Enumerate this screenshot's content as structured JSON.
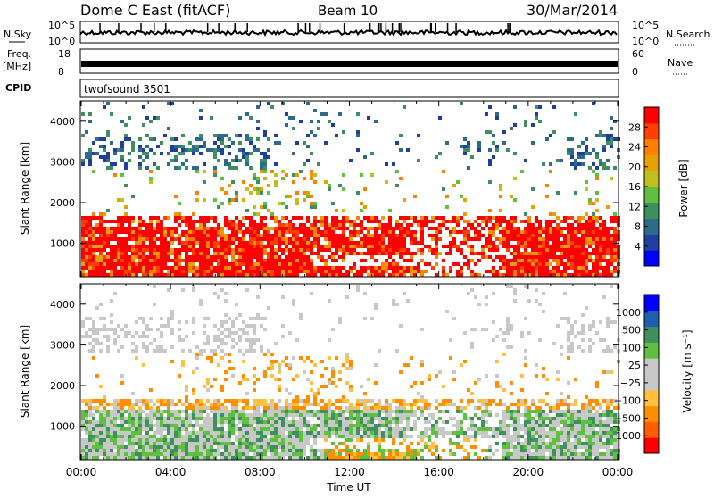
{
  "header": {
    "title_left": "Dome C East (fitACF)",
    "title_center": "Beam 10",
    "title_right": "30/Mar/2014"
  },
  "summary": {
    "nsky_label": "N.Sky",
    "nsky_ticks": [
      "10^5",
      "10^0"
    ],
    "nsearch_label": "N.Search",
    "nsearch_ticks": [
      "10^5",
      "10^0"
    ],
    "freq_label": "Freq.",
    "freq_unit": "[MHz]",
    "freq_ticks": [
      "18",
      "8"
    ],
    "nave_label": "Nave",
    "nave_ticks": [
      "60",
      "0"
    ],
    "cpid_label": "CPID",
    "cpid_value": "twofsound 3501"
  },
  "colors": {
    "power_scale": [
      "#0000ff",
      "#1f3f9f",
      "#2e6b8a",
      "#3d8f5f",
      "#5fbf3f",
      "#bfbf1f",
      "#e6a000",
      "#ff7f00",
      "#ff3f00",
      "#ff0000"
    ],
    "velocity_scale": [
      "#0000ff",
      "#1f5faf",
      "#3f8f5f",
      "#5fbf3f",
      "#c8c8c8",
      "#c8c8c8",
      "#ffbf3f",
      "#ff8f00",
      "#ff5f00",
      "#ff0000"
    ]
  },
  "chart_data": [
    {
      "type": "heatmap",
      "name": "power",
      "ylabel": "Slant Range [km]",
      "yticks": [
        "1000",
        "2000",
        "3000",
        "4000"
      ],
      "yrange": [
        180,
        4500
      ],
      "xticks": [
        "00:00",
        "04:00",
        "08:00",
        "12:00",
        "16:00",
        "20:00",
        "00:00"
      ],
      "colorbar_label": "Power [dB]",
      "colorbar_ticks": [
        "4",
        "8",
        "12",
        "16",
        "20",
        "24",
        "28"
      ],
      "colorbar_range": [
        0,
        30
      ]
    },
    {
      "type": "heatmap",
      "name": "velocity",
      "ylabel": "Slant Range [km]",
      "yticks": [
        "1000",
        "2000",
        "3000",
        "4000"
      ],
      "yrange": [
        180,
        4500
      ],
      "xticks": [
        "00:00",
        "04:00",
        "08:00",
        "12:00",
        "16:00",
        "20:00",
        "00:00"
      ],
      "xlabel": "Time UT",
      "colorbar_label": "Velocity [m s⁻¹]",
      "colorbar_ticks": [
        "1000",
        "500",
        "100",
        "25",
        "−25",
        "−100",
        "−500",
        "−1000"
      ]
    }
  ]
}
